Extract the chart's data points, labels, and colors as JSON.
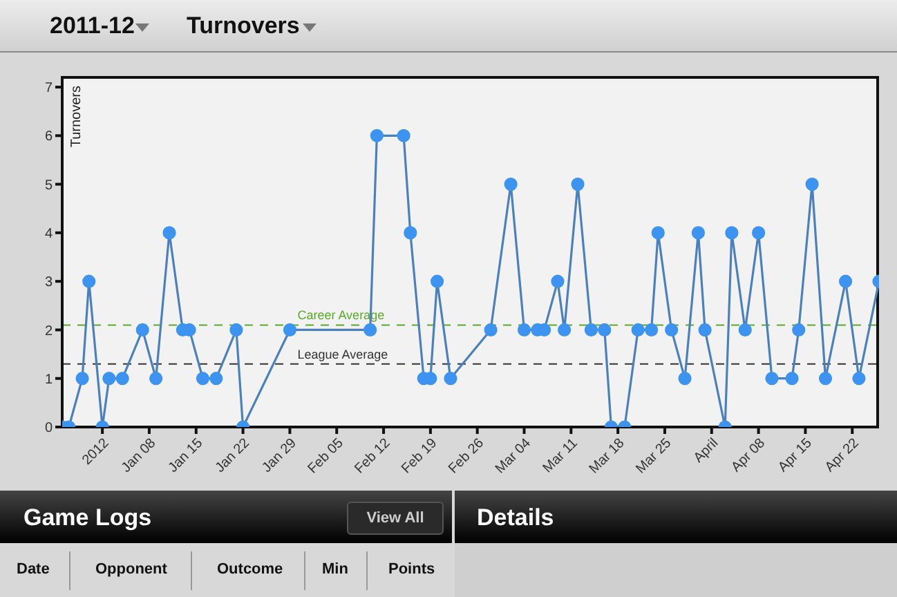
{
  "chart_data": {
    "type": "line",
    "title": "2011-12",
    "subtitle": "Turnovers",
    "ylabel": "Turnovers",
    "x": [
      "2011-12-26",
      "2011-12-27",
      "2011-12-29",
      "2011-12-30",
      "2012-01-01",
      "2012-01-02",
      "2012-01-04",
      "2012-01-07",
      "2012-01-09",
      "2012-01-11",
      "2012-01-13",
      "2012-01-14",
      "2012-01-16",
      "2012-01-18",
      "2012-01-21",
      "2012-01-22",
      "2012-01-29",
      "2012-02-10",
      "2012-02-11",
      "2012-02-15",
      "2012-02-16",
      "2012-02-18",
      "2012-02-19",
      "2012-02-20",
      "2012-02-22",
      "2012-02-28",
      "2012-03-02",
      "2012-03-04",
      "2012-03-06",
      "2012-03-07",
      "2012-03-09",
      "2012-03-10",
      "2012-03-12",
      "2012-03-14",
      "2012-03-16",
      "2012-03-17",
      "2012-03-19",
      "2012-03-21",
      "2012-03-23",
      "2012-03-24",
      "2012-03-26",
      "2012-03-28",
      "2012-03-30",
      "2012-03-31",
      "2012-04-03",
      "2012-04-04",
      "2012-04-06",
      "2012-04-08",
      "2012-04-10",
      "2012-04-13",
      "2012-04-14",
      "2012-04-16",
      "2012-04-18",
      "2012-04-21",
      "2012-04-23",
      "2012-04-26"
    ],
    "series": [
      {
        "color": "#3d94f0",
        "values": [
          0,
          0,
          1,
          3,
          0,
          1,
          1,
          2,
          1,
          4,
          2,
          2,
          1,
          1,
          2,
          0,
          2,
          2,
          6,
          6,
          4,
          1,
          1,
          3,
          1,
          2,
          5,
          2,
          2,
          2,
          3,
          2,
          5,
          2,
          2,
          0,
          0,
          2,
          2,
          4,
          2,
          1,
          4,
          2,
          0,
          4,
          2,
          4,
          1,
          1,
          2,
          5,
          1,
          3,
          1,
          3
        ]
      }
    ],
    "marker": "circle",
    "line_style": "solid",
    "grid": false,
    "legend": false,
    "xlim": [
      "2011-12-26",
      "2012-04-26"
    ],
    "xticks": [
      {
        "value": "2012-01-01",
        "label": "2012"
      },
      {
        "value": "2012-01-08",
        "label": "Jan 08"
      },
      {
        "value": "2012-01-15",
        "label": "Jan 15"
      },
      {
        "value": "2012-01-22",
        "label": "Jan 22"
      },
      {
        "value": "2012-01-29",
        "label": "Jan 29"
      },
      {
        "value": "2012-02-05",
        "label": "Feb 05"
      },
      {
        "value": "2012-02-12",
        "label": "Feb 12"
      },
      {
        "value": "2012-02-19",
        "label": "Feb 19"
      },
      {
        "value": "2012-02-26",
        "label": "Feb 26"
      },
      {
        "value": "2012-03-04",
        "label": "Mar 04"
      },
      {
        "value": "2012-03-11",
        "label": "Mar 11"
      },
      {
        "value": "2012-03-18",
        "label": "Mar 18"
      },
      {
        "value": "2012-03-25",
        "label": "Mar 25"
      },
      {
        "value": "2012-04-01",
        "label": "April"
      },
      {
        "value": "2012-04-08",
        "label": "Apr 08"
      },
      {
        "value": "2012-04-15",
        "label": "Apr 15"
      },
      {
        "value": "2012-04-22",
        "label": "Apr 22"
      }
    ],
    "ylim": [
      0,
      7.2
    ],
    "yticks": [
      0,
      1,
      2,
      3,
      4,
      5,
      6,
      7
    ],
    "ref_lines": [
      {
        "axis": "y",
        "value": 2.1,
        "label": "Career Average",
        "color": "#5aaa2a",
        "line_style": "dashed"
      },
      {
        "axis": "y",
        "value": 1.3,
        "label": "League Average",
        "color": "#333333",
        "line_style": "dashed"
      }
    ],
    "annotations": [
      "Game Logs",
      "View All",
      "Details",
      "Date",
      "Opponent",
      "Outcome",
      "Min",
      "Points"
    ]
  }
}
